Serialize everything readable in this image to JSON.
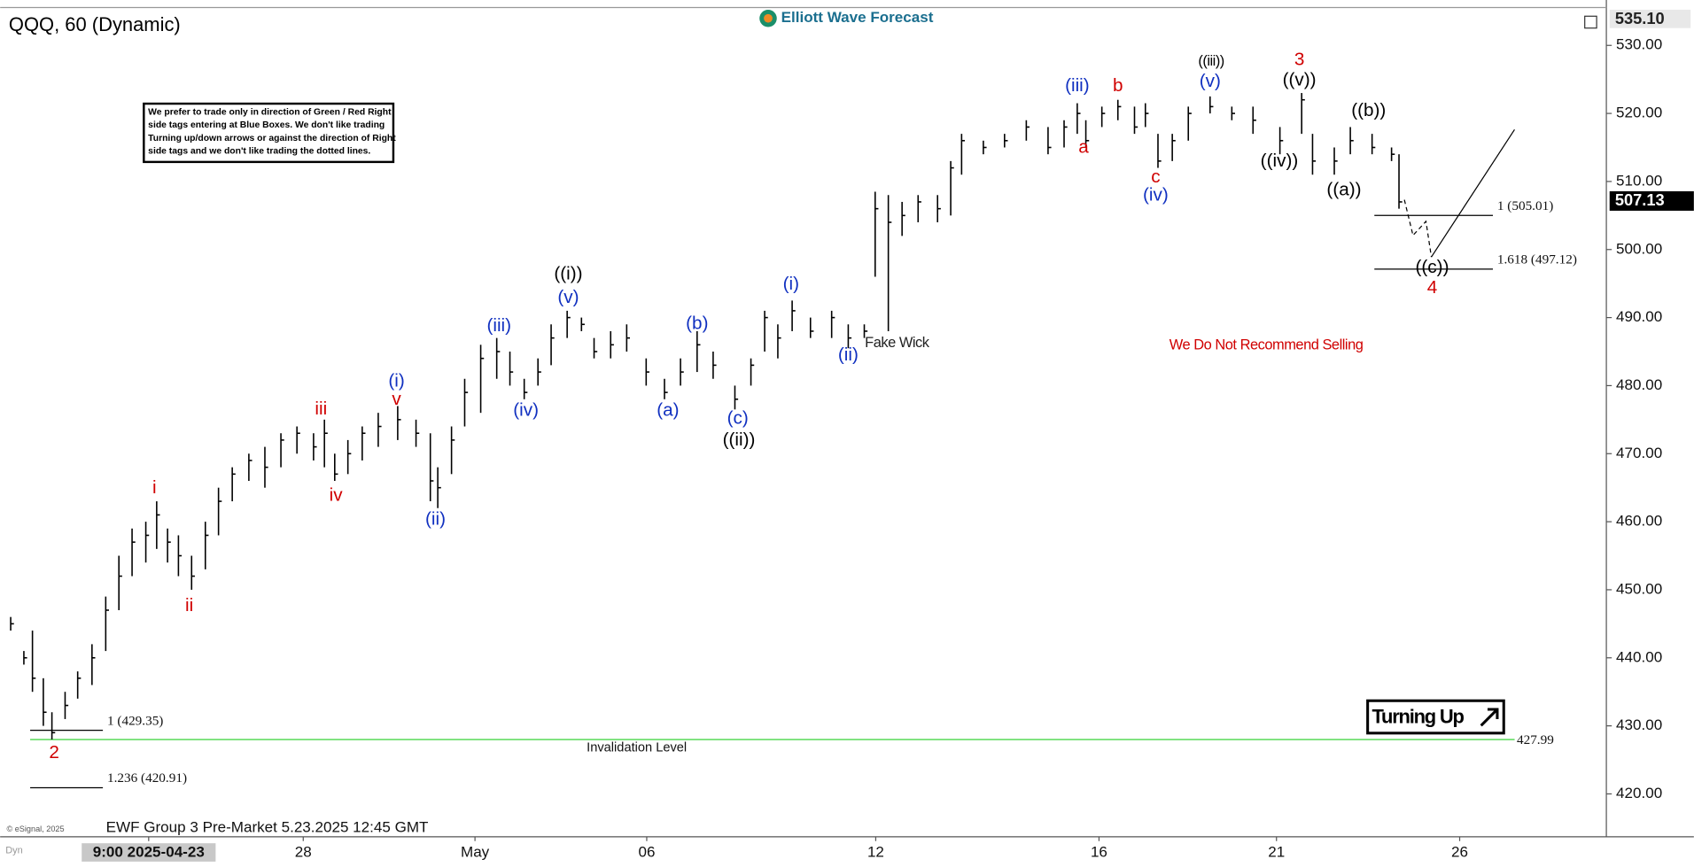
{
  "chart_data": {
    "type": "hlc",
    "title": "QQQ, 60 (Dynamic)",
    "brand": "Elliott Wave Forecast",
    "footer": "EWF Group 3 Pre-Market 5.23.2025 12:45 GMT",
    "copyright": "© eSignal, 2025",
    "corner": "Dyn",
    "note": [
      "We prefer to trade only in direction of Green / Red Right",
      "side tags entering at Blue Boxes. We don't like trading",
      "Turning up/down arrows or against the direction of Right",
      "side tags and we don't like trading the dotted lines."
    ],
    "badge": "Turning Up",
    "invalidation_text": "Invalidation Level",
    "axis_top_label": "535.10",
    "last_price": 507.13,
    "color": "#000000",
    "xlim": [
      0,
      28
    ],
    "xticks": [
      {
        "value": 2.5,
        "label": "9:00 2025-04-23"
      },
      {
        "value": 5.2,
        "label": "28"
      },
      {
        "value": 8.2,
        "label": "May"
      },
      {
        "value": 11.2,
        "label": "06"
      },
      {
        "value": 15.2,
        "label": "12"
      },
      {
        "value": 19.1,
        "label": "16"
      },
      {
        "value": 22.2,
        "label": "21"
      },
      {
        "value": 25.4,
        "label": "26"
      }
    ],
    "ylim": [
      413.7,
      535.4
    ],
    "yticks": [
      {
        "value": 420,
        "label": "420.00"
      },
      {
        "value": 430,
        "label": "430.00"
      },
      {
        "value": 440,
        "label": "440.00"
      },
      {
        "value": 450,
        "label": "450.00"
      },
      {
        "value": 460,
        "label": "460.00"
      },
      {
        "value": 470,
        "label": "470.00"
      },
      {
        "value": 480,
        "label": "480.00"
      },
      {
        "value": 490,
        "label": "490.00"
      },
      {
        "value": 500,
        "label": "500.00"
      },
      {
        "value": 510,
        "label": "510.00"
      },
      {
        "value": 520,
        "label": "520.00"
      },
      {
        "value": 530,
        "label": "530.00"
      }
    ],
    "x": [
      0.09,
      0.32,
      0.47,
      0.66,
      0.81,
      1.04,
      1.26,
      1.51,
      1.75,
      1.98,
      2.21,
      2.45,
      2.64,
      2.83,
      3.02,
      3.25,
      3.49,
      3.72,
      3.96,
      4.25,
      4.53,
      4.81,
      5.09,
      5.38,
      5.57,
      5.75,
      5.98,
      6.23,
      6.51,
      6.85,
      7.17,
      7.42,
      7.55,
      7.79,
      8.02,
      8.3,
      8.58,
      8.81,
      9.06,
      9.3,
      9.53,
      9.81,
      10.06,
      10.28,
      10.57,
      10.85,
      11.19,
      11.51,
      11.79,
      12.08,
      12.36,
      12.74,
      13.02,
      13.26,
      13.49,
      13.74,
      14.06,
      14.43,
      14.72,
      15.0,
      15.19,
      15.42,
      15.66,
      15.94,
      16.28,
      16.51,
      16.7,
      17.08,
      17.45,
      17.83,
      18.21,
      18.49,
      18.72,
      18.87,
      19.15,
      19.43,
      19.72,
      19.91,
      20.13,
      20.38,
      20.66,
      21.04,
      21.42,
      21.79,
      22.26,
      22.64,
      22.83,
      23.21,
      23.49,
      23.87,
      24.21,
      24.34
    ],
    "high": [
      446,
      441,
      444,
      437,
      432,
      435,
      438,
      442,
      449,
      455,
      459,
      460,
      463,
      459,
      458,
      455,
      460,
      465,
      468,
      470,
      471,
      473,
      474,
      473,
      475,
      470,
      472,
      474,
      476,
      477,
      475,
      473,
      468,
      474,
      481,
      486,
      487,
      485,
      481,
      484,
      489,
      491,
      490,
      487,
      488,
      489,
      484,
      481,
      484,
      488,
      485,
      480,
      484,
      491,
      489,
      492.5,
      490,
      491,
      489,
      489,
      508.5,
      508,
      507,
      508,
      508,
      513,
      517,
      516,
      517,
      519,
      518,
      519,
      521.5,
      519,
      521,
      522,
      521,
      521.5,
      517,
      517,
      521,
      522.5,
      521,
      521,
      518,
      523,
      517,
      515,
      518,
      517,
      515,
      514
    ],
    "low": [
      444,
      439,
      435,
      430,
      428,
      431,
      434,
      436,
      441,
      447,
      452,
      454,
      456,
      454,
      452,
      450,
      453,
      458,
      463,
      466,
      465,
      468,
      470,
      469,
      468,
      466,
      467,
      469,
      471,
      472,
      471,
      463,
      462,
      467,
      474,
      476,
      481,
      480,
      478,
      480,
      483,
      487,
      488,
      484,
      484,
      485,
      480,
      478,
      480,
      482,
      481,
      476.5,
      480,
      485,
      484,
      488,
      487,
      487,
      485.5,
      487,
      496,
      488,
      502,
      504,
      504,
      505,
      511,
      514,
      515,
      516,
      514,
      515,
      517,
      515,
      518,
      519,
      517,
      518,
      512,
      513,
      516,
      520,
      519,
      517,
      514,
      517,
      511,
      511,
      514,
      514,
      513,
      506
    ],
    "close": [
      445,
      440,
      437,
      432,
      429,
      433,
      437,
      440,
      447,
      452,
      457,
      458,
      461,
      457,
      455,
      452,
      458,
      463,
      467,
      469,
      468,
      472,
      473,
      471,
      473,
      467,
      470,
      473,
      474,
      475,
      473,
      466,
      465,
      472,
      479,
      484,
      485,
      482,
      479,
      482,
      487,
      490,
      489,
      485,
      486,
      487,
      482,
      479,
      482,
      486,
      483,
      478,
      483,
      490,
      487,
      491,
      488,
      490,
      487,
      488,
      506,
      504,
      505,
      507,
      506,
      512,
      516,
      515,
      516,
      518,
      515,
      518,
      520,
      516,
      520,
      521,
      518,
      520,
      513,
      516,
      520,
      521,
      520,
      519,
      516,
      522,
      513,
      513,
      516,
      515,
      514,
      507
    ],
    "levels": [
      {
        "label": "1 (505.01)",
        "value": 505.01,
        "from": 23.91,
        "to": 25.98
      },
      {
        "label": "1.618 (497.12)",
        "value": 497.12,
        "from": 23.91,
        "to": 25.98
      },
      {
        "label": "1 (429.35)",
        "value": 429.35,
        "from": 0.43,
        "to": 1.7
      },
      {
        "label": "1.236 (420.91)",
        "value": 420.91,
        "from": 0.43,
        "to": 1.7
      },
      {
        "label": "427.99",
        "value": 427.99,
        "from": 0.43,
        "to": 26.36,
        "color": "#22cc22"
      }
    ],
    "annotations": [
      {
        "text": "2",
        "x": 0.85,
        "y": 426.0,
        "color": "#d00000"
      },
      {
        "text": "i",
        "x": 2.6,
        "y": 464.9,
        "color": "#d00000"
      },
      {
        "text": "ii",
        "x": 3.21,
        "y": 447.6,
        "color": "#d00000"
      },
      {
        "text": "iii",
        "x": 5.51,
        "y": 476.5,
        "color": "#d00000"
      },
      {
        "text": "iv",
        "x": 5.77,
        "y": 463.8,
        "color": "#d00000"
      },
      {
        "text": "(i)",
        "x": 6.83,
        "y": 480.6,
        "color": "#1030c0"
      },
      {
        "text": "v",
        "x": 6.83,
        "y": 477.9,
        "color": "#d00000"
      },
      {
        "text": "(ii)",
        "x": 7.51,
        "y": 460.3,
        "color": "#1030c0"
      },
      {
        "text": "(iii)",
        "x": 8.62,
        "y": 488.7,
        "color": "#1030c0"
      },
      {
        "text": "(iv)",
        "x": 9.09,
        "y": 476.3,
        "color": "#1030c0"
      },
      {
        "text": "(v)",
        "x": 9.83,
        "y": 492.9,
        "color": "#1030c0"
      },
      {
        "text": "((i))",
        "x": 9.83,
        "y": 496.3,
        "color": "#000000"
      },
      {
        "text": "(a)",
        "x": 11.57,
        "y": 476.3,
        "color": "#1030c0"
      },
      {
        "text": "(b)",
        "x": 12.08,
        "y": 489.0,
        "color": "#1030c0"
      },
      {
        "text": "(c)",
        "x": 12.79,
        "y": 475.1,
        "color": "#1030c0"
      },
      {
        "text": "((ii))",
        "x": 12.81,
        "y": 471.9,
        "color": "#000000"
      },
      {
        "text": "(i)",
        "x": 13.72,
        "y": 494.8,
        "color": "#1030c0"
      },
      {
        "text": "(ii)",
        "x": 14.72,
        "y": 484.4,
        "color": "#1030c0"
      },
      {
        "text": "Fake Wick",
        "x": 15.57,
        "y": 486.2,
        "color": "#222222"
      },
      {
        "text": "(iii)",
        "x": 18.72,
        "y": 524.0,
        "color": "#1030c0"
      },
      {
        "text": "a",
        "x": 18.83,
        "y": 514.9,
        "color": "#d00000"
      },
      {
        "text": "b",
        "x": 19.43,
        "y": 524.0,
        "color": "#d00000"
      },
      {
        "text": "c",
        "x": 20.09,
        "y": 510.6,
        "color": "#d00000"
      },
      {
        "text": "(iv)",
        "x": 20.09,
        "y": 507.9,
        "color": "#1030c0"
      },
      {
        "text": "(v)",
        "x": 21.04,
        "y": 524.6,
        "color": "#1030c0"
      },
      {
        "text": "((iii))",
        "x": 21.06,
        "y": 527.6,
        "color": "#000000"
      },
      {
        "text": "3",
        "x": 22.6,
        "y": 527.8,
        "color": "#d00000"
      },
      {
        "text": "((v))",
        "x": 22.6,
        "y": 524.8,
        "color": "#000000"
      },
      {
        "text": "((iv))",
        "x": 22.25,
        "y": 512.9,
        "color": "#000000"
      },
      {
        "text": "((b))",
        "x": 23.81,
        "y": 520.3,
        "color": "#000000"
      },
      {
        "text": "((a))",
        "x": 23.38,
        "y": 508.7,
        "color": "#000000"
      },
      {
        "text": "((c))",
        "x": 24.92,
        "y": 497.3,
        "color": "#000000"
      },
      {
        "text": "4",
        "x": 24.92,
        "y": 494.3,
        "color": "#d00000"
      },
      {
        "text": "We Do Not Recommend Selling",
        "x": 22.02,
        "y": 485.9,
        "color": "#d00000"
      }
    ]
  }
}
